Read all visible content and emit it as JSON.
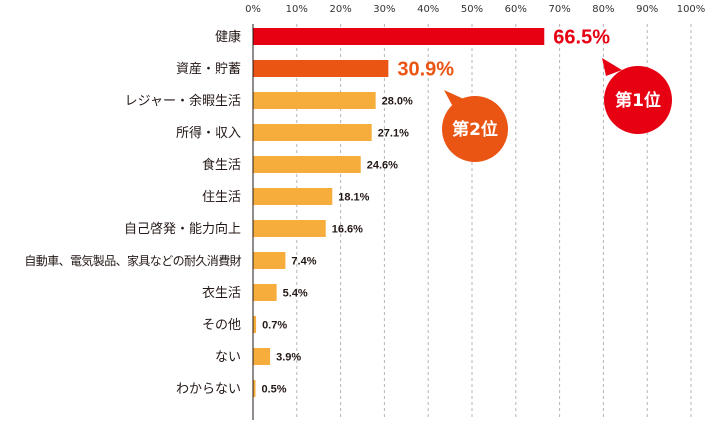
{
  "chart_data": {
    "type": "bar",
    "orientation": "horizontal",
    "categories": [
      "健康",
      "資産・貯蓄",
      "レジャー・余暇生活",
      "所得・収入",
      "食生活",
      "住生活",
      "自己啓発・能力向上",
      "自動車、電気製品、家具などの耐久消費財",
      "衣生活",
      "その他",
      "ない",
      "わからない"
    ],
    "values": [
      66.5,
      30.9,
      28.0,
      27.1,
      24.6,
      18.1,
      16.6,
      7.4,
      5.4,
      0.7,
      3.9,
      0.5
    ],
    "value_labels": [
      "66.5%",
      "30.9%",
      "28.0%",
      "27.1%",
      "24.6%",
      "18.1%",
      "16.6%",
      "7.4%",
      "5.4%",
      "0.7%",
      "3.9%",
      "0.5%"
    ],
    "x_ticks": [
      "0%",
      "10%",
      "20%",
      "30%",
      "40%",
      "50%",
      "60%",
      "70%",
      "80%",
      "90%",
      "100%"
    ],
    "xlim": [
      0,
      100
    ],
    "grid": true,
    "colors": {
      "first": "#e60012",
      "second": "#ea5514",
      "default": "#f6ad3c",
      "grid": "#b5b5b5",
      "axis": "#231815"
    },
    "badges": [
      {
        "label": "第1位",
        "category_index": 0,
        "color": "#e60012"
      },
      {
        "label": "第2位",
        "category_index": 1,
        "color": "#ea5514"
      }
    ]
  }
}
